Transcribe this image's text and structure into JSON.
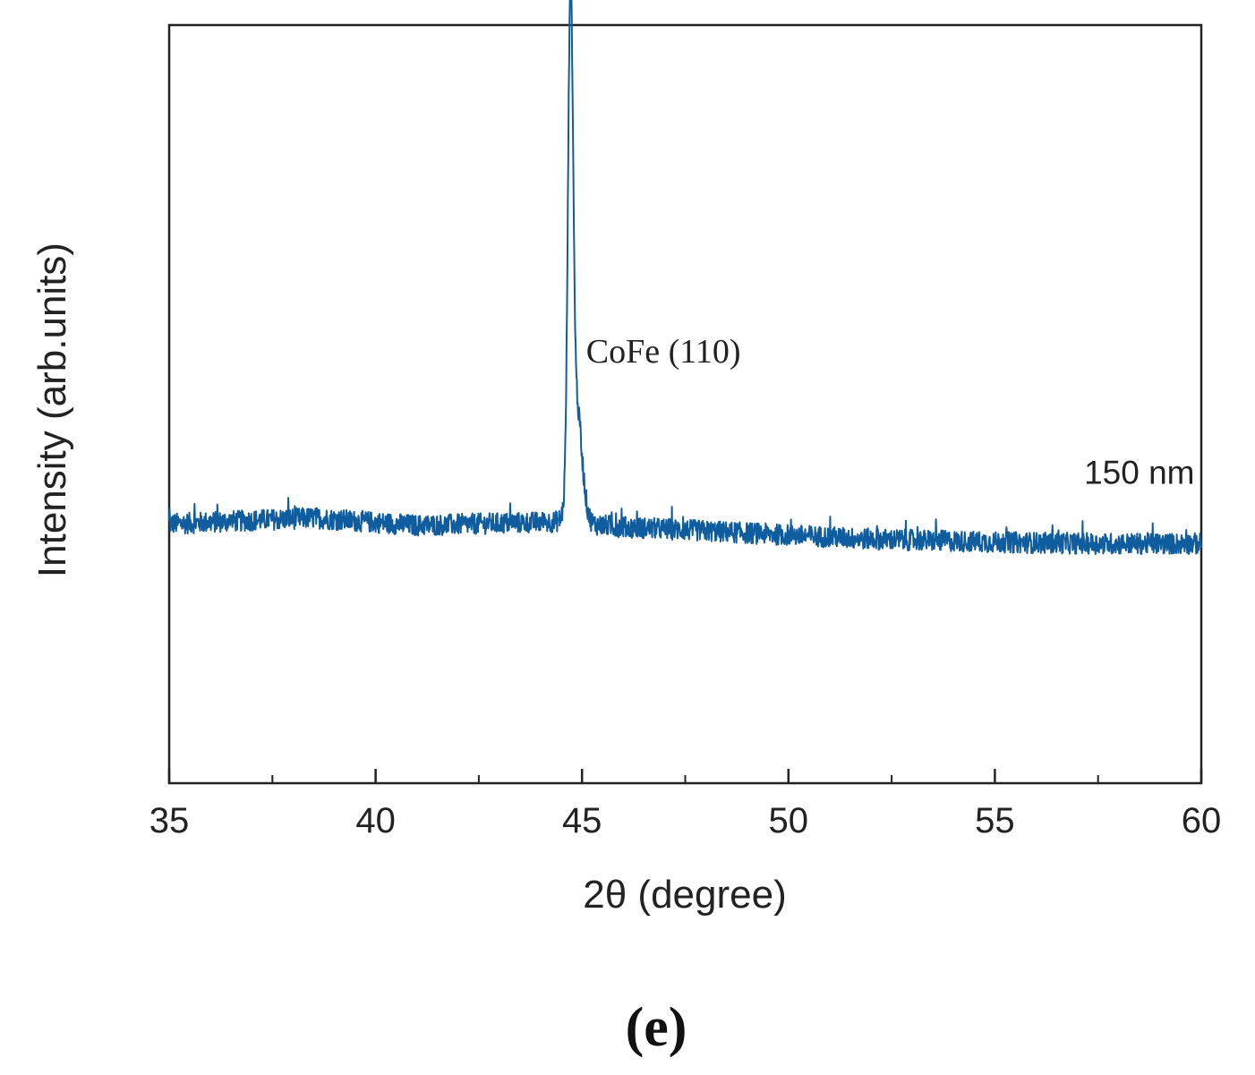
{
  "chart_data": {
    "type": "line",
    "xlabel": "2θ (degree)",
    "ylabel": "Intensity (arb.units)",
    "xlim": [
      35,
      60
    ],
    "ylim": [
      0,
      1
    ],
    "x_ticks_major": [
      35,
      40,
      45,
      50,
      55,
      60
    ],
    "x_ticks_minor": [
      37.5,
      42.5,
      47.5,
      52.5,
      57.5
    ],
    "y_ticks": [],
    "grid": false,
    "panel_label": "(e)",
    "line_color": "#0f5c9e",
    "series": [
      {
        "name": "150 nm",
        "baseline": [
          {
            "x": 35,
            "y": 0.342
          },
          {
            "x": 38.5,
            "y": 0.35
          },
          {
            "x": 41,
            "y": 0.34
          },
          {
            "x": 44.5,
            "y": 0.345
          },
          {
            "x": 46,
            "y": 0.338
          },
          {
            "x": 49,
            "y": 0.33
          },
          {
            "x": 52,
            "y": 0.322
          },
          {
            "x": 55,
            "y": 0.318
          },
          {
            "x": 57.5,
            "y": 0.316
          },
          {
            "x": 60,
            "y": 0.316
          }
        ],
        "noise_amplitude": 0.014,
        "peaks": [
          {
            "center": 44.72,
            "height": 0.62,
            "width": 0.06
          },
          {
            "center": 44.85,
            "height": 0.16,
            "width": 0.14
          }
        ]
      }
    ],
    "annotations": [
      {
        "text": "CoFe (110)",
        "x": 45.1,
        "y": 0.555
      },
      {
        "text": "150 nm",
        "x": 58.5,
        "y": 0.395
      }
    ]
  }
}
